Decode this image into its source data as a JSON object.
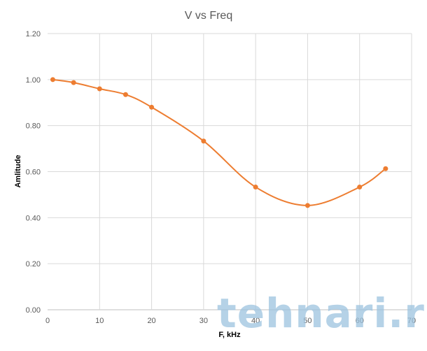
{
  "chart_data": {
    "type": "line",
    "title": "V vs Freq",
    "xlabel": "F, kHz",
    "ylabel": "Amlitude",
    "xlim": [
      0,
      70
    ],
    "ylim": [
      0,
      1.2
    ],
    "x_ticks": [
      "0",
      "10",
      "20",
      "30",
      "40",
      "50",
      "60",
      "70"
    ],
    "y_ticks": [
      "0.00",
      "0.20",
      "0.40",
      "0.60",
      "0.80",
      "1.00",
      "1.20"
    ],
    "grid": true,
    "smooth": true,
    "series": [
      {
        "x": [
          1,
          5,
          10,
          15,
          20,
          30,
          40,
          50,
          60,
          65
        ],
        "y": [
          1.0,
          0.987,
          0.96,
          0.935,
          0.88,
          0.733,
          0.533,
          0.453,
          0.533,
          0.613
        ]
      }
    ],
    "colors": {
      "series": "#ed7d31",
      "grid": "#d9d9d9",
      "axis": "#bfbfbf"
    }
  },
  "watermark": "tehnari.ru"
}
